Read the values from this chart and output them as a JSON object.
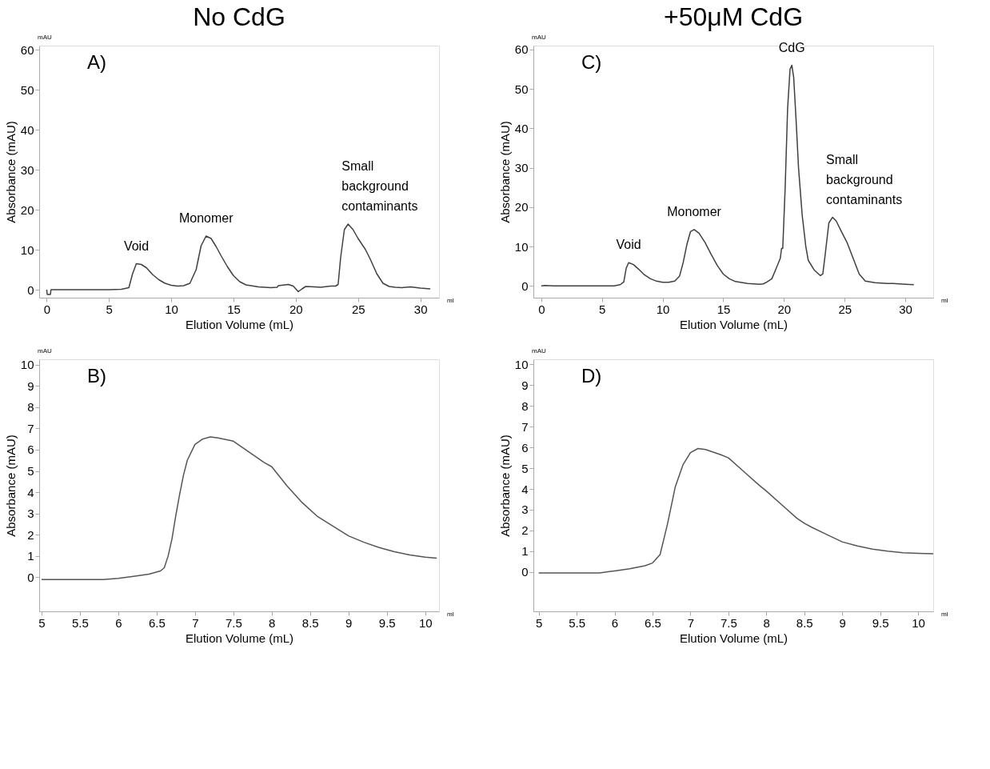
{
  "chart_data": [
    {
      "type": "line",
      "title": "No CdG",
      "xlabel": "Elution Volume (mL)",
      "ylabel": "Absorbance (mAU)",
      "xlim": [
        -0.6,
        31.5
      ],
      "ylim": [
        -2,
        61
      ],
      "xticks": [
        0,
        5,
        10,
        15,
        20,
        25,
        30
      ],
      "yticks": [
        0,
        10,
        20,
        30,
        40,
        50,
        60
      ],
      "grid": false,
      "line_style": "solid",
      "series": [
        {
          "color": "#404040",
          "x": [
            0,
            0.05,
            0.3,
            0.35,
            2,
            5,
            6,
            6.6,
            6.9,
            7.2,
            7.6,
            8,
            8.5,
            9,
            9.5,
            10,
            10.5,
            11,
            11.5,
            12,
            12.4,
            12.8,
            13.2,
            13.6,
            14,
            14.5,
            15,
            15.5,
            16,
            17,
            18,
            18.5,
            18.6,
            19.4,
            19.8,
            20.2,
            20.5,
            20.8,
            21.5,
            22,
            22.8,
            23.2,
            23.4,
            23.6,
            23.9,
            24.2,
            24.6,
            25,
            25.6,
            26,
            26.5,
            27,
            27.5,
            28,
            28.5,
            29.2,
            30,
            30.8
          ],
          "values": [
            0,
            -1.2,
            -1.2,
            0,
            0,
            0,
            0.1,
            0.5,
            4,
            6.5,
            6.3,
            5.5,
            3.8,
            2.5,
            1.6,
            1.1,
            0.9,
            1,
            1.6,
            5,
            11,
            13.4,
            12.8,
            10.8,
            8.5,
            5.8,
            3.5,
            2,
            1.2,
            0.7,
            0.5,
            0.6,
            1,
            1.3,
            0.9,
            -0.5,
            0.2,
            0.8,
            0.7,
            0.6,
            0.9,
            0.9,
            1.3,
            8,
            15,
            16.4,
            15,
            12.8,
            10,
            7.5,
            4,
            1.6,
            0.8,
            0.6,
            0.5,
            0.7,
            0.4,
            0.2
          ]
        }
      ],
      "annotations": [
        "A)",
        "mAU",
        "ml",
        {
          "text": "Void",
          "x": 7.2,
          "y": 6.5
        },
        {
          "text": "Monomer",
          "x": 12.8,
          "y": 13.4
        },
        {
          "text": "Small background contaminants",
          "x": 24.2,
          "y": 16.4
        }
      ]
    },
    {
      "type": "line",
      "title": "+50μM CdG",
      "xlabel": "Elution Volume (mL)",
      "ylabel": "Absorbance (mAU)",
      "xlim": [
        -0.65,
        32.3
      ],
      "ylim": [
        -3,
        61
      ],
      "xticks": [
        0,
        5,
        10,
        15,
        20,
        25,
        30
      ],
      "yticks": [
        0,
        10,
        20,
        30,
        40,
        50,
        60
      ],
      "grid": false,
      "line_style": "solid",
      "series": [
        {
          "color": "#404040",
          "x": [
            0,
            0.3,
            1,
            5,
            6,
            6.5,
            6.8,
            7,
            7.2,
            7.6,
            8,
            8.5,
            9,
            9.5,
            10,
            10.5,
            11,
            11.4,
            11.7,
            12,
            12.3,
            12.6,
            13,
            13.5,
            14,
            14.5,
            15,
            15.5,
            16,
            17,
            18,
            18.3,
            18.6,
            19,
            19.3,
            19.7,
            19.8,
            19.9,
            20.1,
            20.3,
            20.5,
            20.65,
            20.8,
            21,
            21.2,
            21.5,
            21.8,
            22,
            22.5,
            23,
            23.2,
            23.4,
            23.7,
            24,
            24.3,
            24.7,
            25.2,
            25.7,
            26.2,
            26.7,
            27.5,
            28.5,
            29,
            30,
            30.7
          ],
          "values": [
            0,
            0.1,
            0,
            0,
            0,
            0.3,
            1,
            4.5,
            5.9,
            5.4,
            4.3,
            2.8,
            1.8,
            1.2,
            0.9,
            0.9,
            1.2,
            2.5,
            6,
            10.5,
            13.8,
            14.3,
            13.4,
            11,
            8,
            5.2,
            3,
            1.8,
            1.1,
            0.6,
            0.4,
            0.5,
            1,
            1.8,
            4,
            7,
            9.5,
            9.5,
            25,
            45,
            55,
            56,
            53,
            42,
            30,
            18,
            10,
            6.5,
            4,
            2.6,
            3,
            8,
            16,
            17.4,
            16.5,
            14,
            11,
            7,
            3,
            1.2,
            0.8,
            0.6,
            0.6,
            0.4,
            0.3
          ]
        }
      ],
      "annotations": [
        "C)",
        "mAU",
        "ml",
        {
          "text": "Void",
          "x": 7.2,
          "y": 5.9
        },
        {
          "text": "Monomer",
          "x": 12.6,
          "y": 14.3
        },
        {
          "text": "CdG",
          "x": 20.65,
          "y": 56
        },
        {
          "text": "Small background contaminants",
          "x": 24,
          "y": 17.4
        }
      ]
    },
    {
      "type": "line",
      "xlabel": "Elution Volume (mL)",
      "ylabel": "Absorbance (mAU)",
      "xlim": [
        4.97,
        10.18
      ],
      "ylim": [
        -1.6,
        10.25
      ],
      "xticks": [
        5,
        5.5,
        6,
        6.5,
        7,
        7.5,
        8,
        8.5,
        9,
        9.5,
        10
      ],
      "yticks": [
        0,
        1,
        2,
        3,
        4,
        5,
        6,
        7,
        8,
        9,
        10
      ],
      "grid": false,
      "line_style": "solid",
      "series": [
        {
          "color": "#555555",
          "x": [
            5,
            5.5,
            5.8,
            6,
            6.2,
            6.4,
            6.55,
            6.6,
            6.65,
            6.7,
            6.75,
            6.8,
            6.85,
            6.9,
            7,
            7.1,
            7.2,
            7.3,
            7.5,
            7.7,
            7.9,
            8,
            8.2,
            8.4,
            8.6,
            8.8,
            9,
            9.2,
            9.4,
            9.6,
            9.8,
            10,
            10.15
          ],
          "values": [
            -0.1,
            -0.1,
            -0.1,
            -0.05,
            0.05,
            0.15,
            0.3,
            0.45,
            1,
            1.8,
            2.9,
            3.9,
            4.8,
            5.5,
            6.25,
            6.5,
            6.6,
            6.55,
            6.4,
            5.9,
            5.4,
            5.2,
            4.3,
            3.5,
            2.85,
            2.4,
            1.95,
            1.65,
            1.4,
            1.2,
            1.05,
            0.95,
            0.9
          ]
        }
      ],
      "annotations": [
        "B)",
        "mAU",
        "ml"
      ]
    },
    {
      "type": "line",
      "xlabel": "Elution Volume (mL)",
      "ylabel": "Absorbance (mAU)",
      "xlim": [
        4.93,
        10.2
      ],
      "ylim": [
        -1.9,
        10.25
      ],
      "xticks": [
        5,
        5.5,
        6,
        6.5,
        7,
        7.5,
        8,
        8.5,
        9,
        9.5,
        10
      ],
      "yticks": [
        0,
        1,
        2,
        3,
        4,
        5,
        6,
        7,
        8,
        9,
        10
      ],
      "grid": false,
      "line_style": "solid",
      "series": [
        {
          "color": "#555555",
          "x": [
            5,
            5.5,
            5.8,
            6,
            6.2,
            6.4,
            6.5,
            6.6,
            6.7,
            6.8,
            6.9,
            7,
            7.1,
            7.2,
            7.4,
            7.5,
            7.7,
            7.9,
            8,
            8.2,
            8.4,
            8.5,
            8.6,
            8.8,
            9,
            9.2,
            9.4,
            9.6,
            9.8,
            10,
            10.2
          ],
          "values": [
            -0.05,
            -0.05,
            -0.05,
            0.05,
            0.15,
            0.3,
            0.43,
            0.84,
            2.35,
            4.1,
            5.15,
            5.75,
            5.95,
            5.9,
            5.65,
            5.5,
            4.85,
            4.2,
            3.9,
            3.25,
            2.6,
            2.35,
            2.15,
            1.8,
            1.45,
            1.25,
            1.1,
            1,
            0.93,
            0.9,
            0.88
          ]
        }
      ],
      "annotations": [
        "D)",
        "mAU",
        "ml"
      ]
    }
  ]
}
